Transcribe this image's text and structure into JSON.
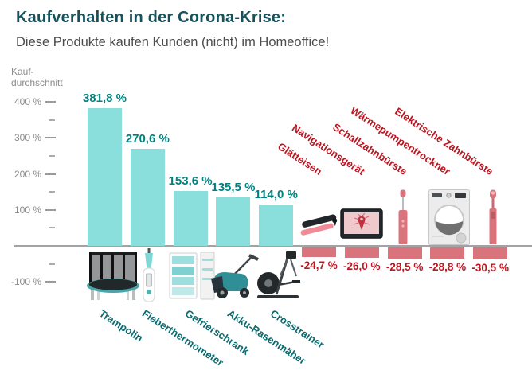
{
  "header": {
    "title": "Kaufverhalten in der Corona-Krise:",
    "subtitle": "Diese Produkte kaufen Kunden (nicht) im Homeoffice!"
  },
  "axis": {
    "title_line1": "Kauf-",
    "title_line2": "durchschnitt",
    "ticks": [
      {
        "label": "400 %",
        "value": 400
      },
      {
        "label": "300 %",
        "value": 300
      },
      {
        "label": "200 %",
        "value": 200
      },
      {
        "label": "100 %",
        "value": 100
      },
      {
        "label": "-100 %",
        "value": -100
      }
    ],
    "minor_ticks": [
      350,
      250,
      150,
      50,
      -50
    ]
  },
  "chart_data": {
    "type": "bar",
    "title": "Kaufverhalten in der Corona-Krise:",
    "subtitle": "Diese Produkte kaufen Kunden (nicht) im Homeoffice!",
    "ylabel": "Kauf-durchschnitt",
    "xlabel": "",
    "yticks": [
      400,
      300,
      200,
      100,
      -100
    ],
    "ylim": [
      -110,
      420
    ],
    "grid": false,
    "legend": false,
    "categories": [
      "Trampolin",
      "Fieberthermometer",
      "Gefrierschrank",
      "Akku-Rasenmäher",
      "Crosstrainer",
      "Glätteisen",
      "Navigationsgerät",
      "Schallzahnbürste",
      "Wärmepumpentrockner",
      "Elektrische Zahnbürste"
    ],
    "values": [
      381.8,
      270.6,
      153.6,
      135.5,
      114.0,
      -24.7,
      -26.0,
      -28.5,
      -28.8,
      -30.5
    ],
    "value_labels": [
      "381,8 %",
      "270,6 %",
      "153,6 %",
      "135,5 %",
      "114,0 %",
      "-24,7 %",
      "-26,0 %",
      "-28,5 %",
      "-28,8 %",
      "-30,5 %"
    ],
    "items": [
      {
        "label": "Trampolin",
        "value": 381.8,
        "display": "381,8 %",
        "icon": "trampoline-icon"
      },
      {
        "label": "Fieberthermometer",
        "value": 270.6,
        "display": "270,6 %",
        "icon": "thermometer-icon"
      },
      {
        "label": "Gefrierschrank",
        "value": 153.6,
        "display": "153,6 %",
        "icon": "freezer-icon"
      },
      {
        "label": "Akku-Rasenmäher",
        "value": 135.5,
        "display": "135,5 %",
        "icon": "lawn-mower-icon"
      },
      {
        "label": "Crosstrainer",
        "value": 114.0,
        "display": "114,0 %",
        "icon": "crosstrainer-icon"
      },
      {
        "label": "Glätteisen",
        "value": -24.7,
        "display": "-24,7 %",
        "icon": "flat-iron-icon"
      },
      {
        "label": "Navigationsgerät",
        "value": -26.0,
        "display": "-26,0 %",
        "icon": "navigation-device-icon"
      },
      {
        "label": "Schallzahnbürste",
        "value": -28.5,
        "display": "-28,5 %",
        "icon": "sonic-toothbrush-icon"
      },
      {
        "label": "Wärmepumpentrockner",
        "value": -28.8,
        "display": "-28,8 %",
        "icon": "dryer-icon"
      },
      {
        "label": "Elektrische Zahnbürste",
        "value": -30.5,
        "display": "-30,5 %",
        "icon": "electric-toothbrush-icon"
      }
    ]
  },
  "colors": {
    "title": "#15525E",
    "subtitle": "#4C4C4C",
    "bar_positive": "#8ADEDC",
    "bar_negative": "#D9747C",
    "value_positive": "#00827E",
    "value_negative": "#BE1621",
    "category_positive": "#0B6B70",
    "category_negative": "#BE1621",
    "axis_text": "#8C8C8C",
    "baseline": "#A3A3A3"
  }
}
